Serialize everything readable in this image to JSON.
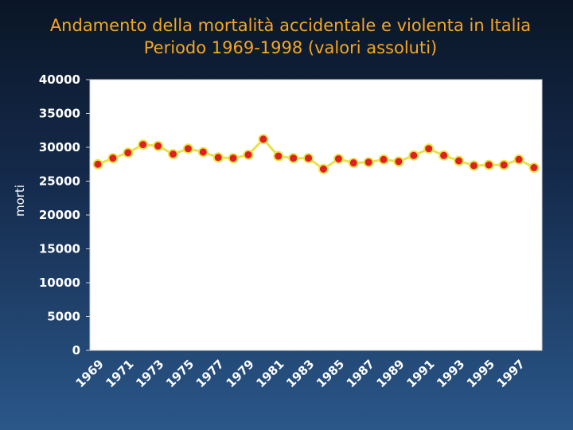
{
  "chart_data": {
    "type": "line",
    "title": "Andamento della mortalità accidentale e violenta in Italia",
    "subtitle": "Periodo 1969-1998 (valori assoluti)",
    "ylabel": "morti",
    "xlabel": "",
    "ylim": [
      0,
      40000
    ],
    "yticks": [
      0,
      5000,
      10000,
      15000,
      20000,
      25000,
      30000,
      35000,
      40000
    ],
    "xtick_labels": [
      "1969",
      "1971",
      "1973",
      "1975",
      "1977",
      "1979",
      "1981",
      "1983",
      "1985",
      "1987",
      "1989",
      "1991",
      "1993",
      "1995",
      "1997"
    ],
    "grid": false,
    "x": [
      1969,
      1970,
      1971,
      1972,
      1973,
      1974,
      1975,
      1976,
      1977,
      1978,
      1979,
      1980,
      1981,
      1982,
      1983,
      1984,
      1985,
      1986,
      1987,
      1988,
      1989,
      1990,
      1991,
      1992,
      1993,
      1994,
      1995,
      1996,
      1997,
      1998
    ],
    "values": [
      27500,
      28400,
      29200,
      30400,
      30200,
      29000,
      29800,
      29300,
      28500,
      28400,
      28900,
      31200,
      28700,
      28400,
      28400,
      26800,
      28300,
      27700,
      27800,
      28200,
      27900,
      28800,
      29800,
      28800,
      28000,
      27300,
      27400,
      27400,
      28200,
      27000
    ],
    "colors": {
      "line": "#e8e24a",
      "marker": "#e02020",
      "title": "#f5a623",
      "plot_bg": "#ffffff"
    }
  }
}
